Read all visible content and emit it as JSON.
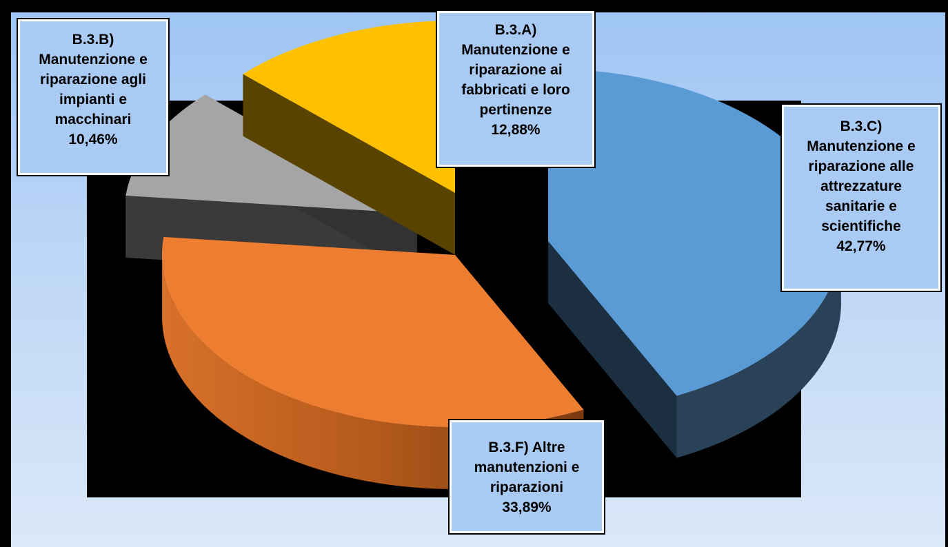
{
  "chart_data": {
    "type": "pie",
    "title": "",
    "style": "3d-exploded",
    "legend": "none",
    "slices": [
      {
        "label": "B.3.C) Manutenzione e riparazione alle attrezzature sanitarie e scientifiche",
        "value": 42.77,
        "value_label": "42,77%",
        "color": "#5b9bd5"
      },
      {
        "label": "B.3.F) Altre manutenzioni e riparazioni",
        "value": 33.89,
        "value_label": "33,89%",
        "color": "#ed7d31"
      },
      {
        "label": "B.3.B) Manutenzione e riparazione agli impianti e macchinari",
        "value": 10.46,
        "value_label": "10,46%",
        "color": "#a5a5a5"
      },
      {
        "label": "B.3.A) Manutenzione e riparazione ai fabbricati e loro pertinenze",
        "value": 12.88,
        "value_label": "12,88%",
        "color": "#ffc000"
      }
    ]
  },
  "labels": {
    "a": {
      "line1": "B.3.A)",
      "line2": "Manutenzione e",
      "line3": "riparazione ai",
      "line4": "fabbricati e loro",
      "line5": "pertinenze",
      "value": "12,88%"
    },
    "b": {
      "line1": "B.3.B)",
      "line2": "Manutenzione e",
      "line3": "riparazione agli",
      "line4": "impianti e",
      "line5": "macchinari",
      "value": "10,46%"
    },
    "c": {
      "line1": "B.3.C)",
      "line2": "Manutenzione e",
      "line3": "riparazione alle",
      "line4": "attrezzature",
      "line5": "sanitarie e",
      "line6": "scientifiche",
      "value": "42,77%"
    },
    "f": {
      "line1": "B.3.F)  Altre",
      "line2": "manutenzioni e",
      "line3": "riparazioni",
      "value": "33,89%"
    }
  }
}
